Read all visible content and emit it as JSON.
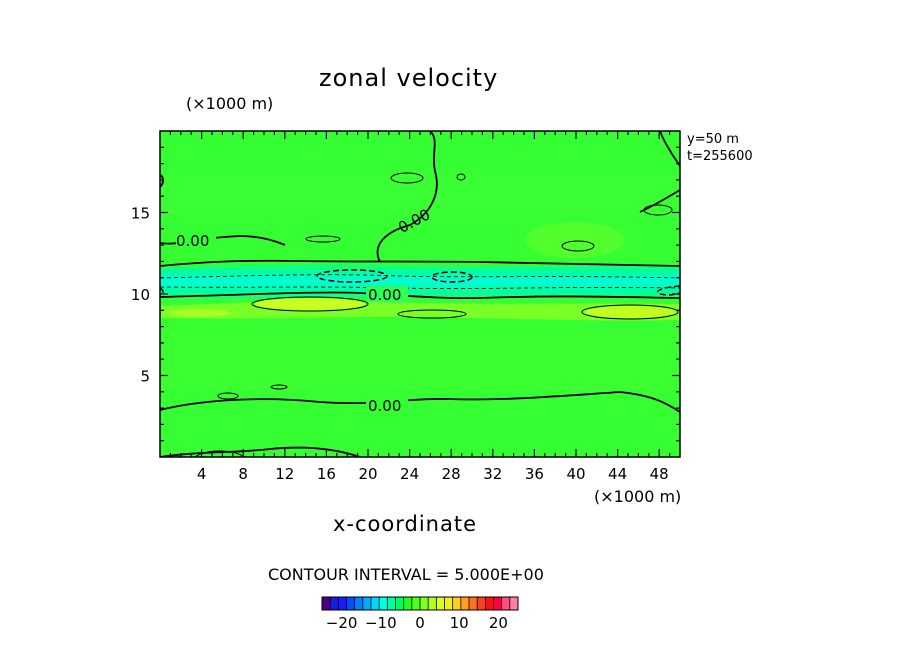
{
  "chart_data": {
    "type": "heatmap",
    "title": "zonal velocity",
    "xlabel": "x-coordinate",
    "x_unit": "(×1000 m)",
    "y_unit": "(×1000 m)",
    "side_info": [
      "y=50  m",
      "t=255600"
    ],
    "xlim": [
      0,
      50
    ],
    "ylim": [
      0,
      20
    ],
    "x_ticks": [
      4,
      8,
      12,
      16,
      20,
      24,
      28,
      32,
      36,
      40,
      44,
      48
    ],
    "y_ticks": [
      5,
      10,
      15
    ],
    "contour_interval_text": "CONTOUR INTERVAL = 5.000E+00",
    "contour_labels": [
      "0.00",
      "0.00",
      "0.00",
      "0.00"
    ],
    "colorbar": {
      "min": -25,
      "max": 25,
      "tick_labels": [
        "−20",
        "−10",
        "0",
        "10",
        "20"
      ],
      "tick_values": [
        -20,
        -10,
        0,
        10,
        20
      ],
      "colors": [
        "#4b0082",
        "#1a1adc",
        "#1a1aff",
        "#0050ff",
        "#0080ff",
        "#00aaff",
        "#00d8ff",
        "#00ffe0",
        "#00ffa0",
        "#00ff60",
        "#20ff20",
        "#50ff20",
        "#80ff20",
        "#b0ff20",
        "#d8ff20",
        "#f0f020",
        "#ffd020",
        "#ffa020",
        "#ff7020",
        "#ff4020",
        "#ff1010",
        "#ff0040",
        "#ff5080",
        "#ff80a0"
      ]
    },
    "field_colors": {
      "background": "#35ff33",
      "jet_core": "#00ffd8",
      "jet_inner": "#00ffaa",
      "jet_edge": "#14ff80",
      "positive_band": "#b4ff20",
      "light_band": "#86ff26"
    }
  }
}
